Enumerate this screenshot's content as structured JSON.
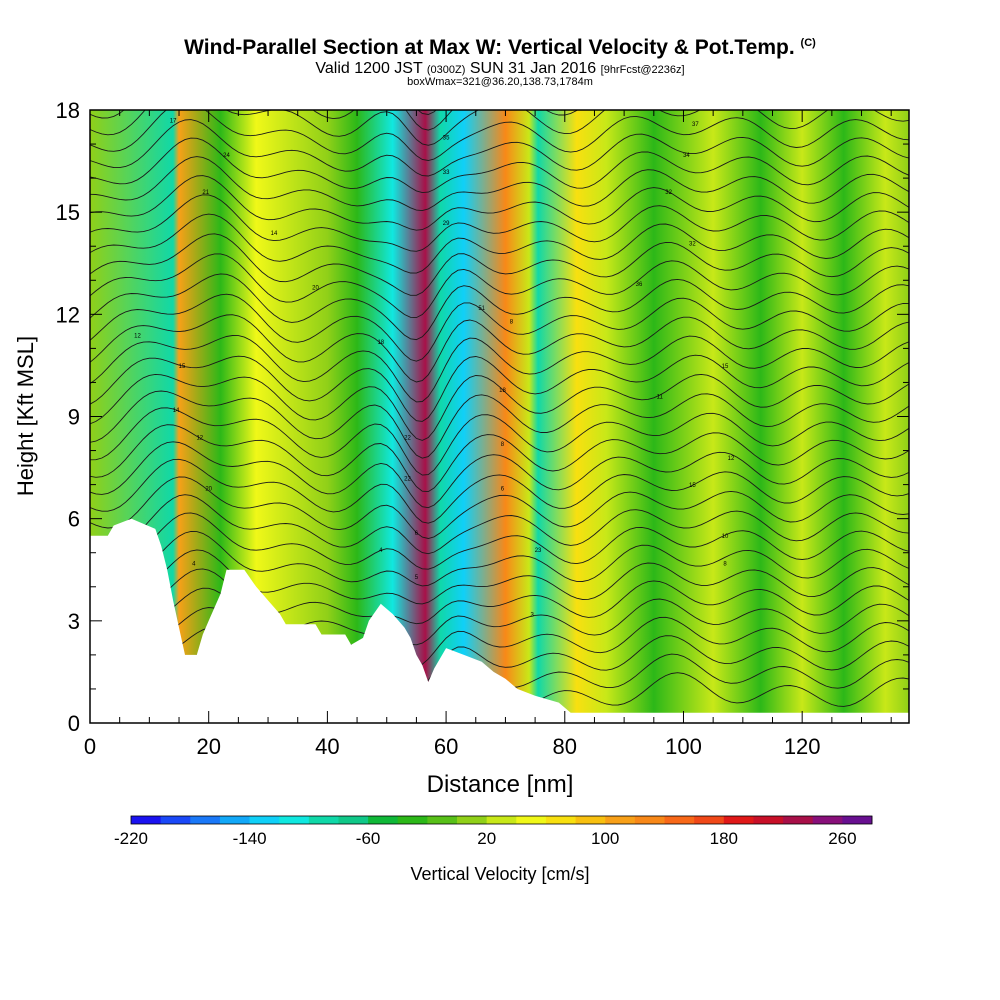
{
  "header": {
    "title": "Wind-Parallel Section at Max W: Vertical Velocity & Pot.Temp.",
    "copyright": "(C)",
    "valid_prefix": "Valid 1200 JST",
    "valid_utc": "(0300Z)",
    "valid_date": "SUN 31 Jan 2016",
    "forecast": "[9hrFcst@2236z]",
    "boxwmax": "boxWmax=321@36.20,138.73,1784m"
  },
  "chart_data": {
    "type": "heatmap",
    "xlabel": "Distance [nm]",
    "ylabel": "Height [Kft MSL]",
    "xlim": [
      0,
      138
    ],
    "ylim": [
      0,
      18
    ],
    "xticks": [
      0,
      20,
      40,
      60,
      80,
      100,
      120
    ],
    "yticks": [
      0,
      3,
      6,
      9,
      12,
      15,
      18
    ],
    "colorbar": {
      "label": "Vertical Velocity [cm/s]",
      "tick_labels": [
        -220,
        -140,
        -60,
        20,
        100,
        180,
        260
      ],
      "colors": [
        "#1a12f0",
        "#1a48f8",
        "#1a78f8",
        "#12a8f8",
        "#10d0f8",
        "#10e8e0",
        "#10d8a8",
        "#10c888",
        "#10b838",
        "#2cb818",
        "#58c018",
        "#90d018",
        "#c8e818",
        "#f0f818",
        "#f8e010",
        "#f8c010",
        "#f8a018",
        "#f88818",
        "#f86818",
        "#f04818",
        "#e01818",
        "#c81028",
        "#a81048",
        "#88107a",
        "#681090"
      ]
    },
    "vertical_velocity_bands": [
      {
        "x": 15,
        "w_cm_s": 150
      },
      {
        "x": 14,
        "w_cm_s": -110
      },
      {
        "x": 22,
        "w_cm_s": -40
      },
      {
        "x": 28,
        "w_cm_s": 60
      },
      {
        "x": 40,
        "w_cm_s": 20
      },
      {
        "x": 45,
        "w_cm_s": -40
      },
      {
        "x": 51,
        "w_cm_s": -130
      },
      {
        "x": 56.5,
        "w_cm_s": 300
      },
      {
        "x": 59,
        "w_cm_s": -100
      },
      {
        "x": 63,
        "w_cm_s": -170
      },
      {
        "x": 70,
        "w_cm_s": 160
      },
      {
        "x": 74,
        "w_cm_s": 40
      },
      {
        "x": 75.5,
        "w_cm_s": -120
      },
      {
        "x": 82,
        "w_cm_s": 90
      },
      {
        "x": 87,
        "w_cm_s": 40
      },
      {
        "x": 95,
        "w_cm_s": -40
      },
      {
        "x": 105,
        "w_cm_s": 40
      },
      {
        "x": 113,
        "w_cm_s": -40
      },
      {
        "x": 120,
        "w_cm_s": 30
      },
      {
        "x": 127,
        "w_cm_s": -40
      },
      {
        "x": 134,
        "w_cm_s": 30
      }
    ],
    "terrain_kft": [
      {
        "x": 0,
        "h": 5.5
      },
      {
        "x": 3,
        "h": 5.5
      },
      {
        "x": 4,
        "h": 5.8
      },
      {
        "x": 7,
        "h": 6.0
      },
      {
        "x": 11,
        "h": 5.7
      },
      {
        "x": 12,
        "h": 5.2
      },
      {
        "x": 13,
        "h": 4.5
      },
      {
        "x": 14,
        "h": 3.6
      },
      {
        "x": 15,
        "h": 2.8
      },
      {
        "x": 16,
        "h": 2.0
      },
      {
        "x": 18,
        "h": 2.0
      },
      {
        "x": 19,
        "h": 2.6
      },
      {
        "x": 20,
        "h": 3.0
      },
      {
        "x": 22,
        "h": 3.8
      },
      {
        "x": 23,
        "h": 4.5
      },
      {
        "x": 26,
        "h": 4.5
      },
      {
        "x": 28,
        "h": 4.0
      },
      {
        "x": 30,
        "h": 3.6
      },
      {
        "x": 32,
        "h": 3.2
      },
      {
        "x": 33,
        "h": 2.9
      },
      {
        "x": 38,
        "h": 2.9
      },
      {
        "x": 39,
        "h": 2.6
      },
      {
        "x": 43,
        "h": 2.6
      },
      {
        "x": 44,
        "h": 2.3
      },
      {
        "x": 46,
        "h": 2.5
      },
      {
        "x": 47,
        "h": 3.0
      },
      {
        "x": 49,
        "h": 3.5
      },
      {
        "x": 51,
        "h": 3.2
      },
      {
        "x": 53,
        "h": 2.8
      },
      {
        "x": 54,
        "h": 2.5
      },
      {
        "x": 55,
        "h": 2.0
      },
      {
        "x": 56,
        "h": 1.7
      },
      {
        "x": 57,
        "h": 1.2
      },
      {
        "x": 58,
        "h": 1.6
      },
      {
        "x": 60,
        "h": 2.2
      },
      {
        "x": 63,
        "h": 2.0
      },
      {
        "x": 66,
        "h": 1.8
      },
      {
        "x": 68,
        "h": 1.5
      },
      {
        "x": 70,
        "h": 1.3
      },
      {
        "x": 72,
        "h": 1.0
      },
      {
        "x": 75,
        "h": 0.8
      },
      {
        "x": 79,
        "h": 0.6
      },
      {
        "x": 81,
        "h": 0.3
      },
      {
        "x": 138,
        "h": 0.3
      }
    ],
    "contour_labels": [
      {
        "text": "17",
        "x": 14,
        "y": 17.7
      },
      {
        "text": "24",
        "x": 23,
        "y": 16.7
      },
      {
        "text": "21",
        "x": 19.5,
        "y": 15.6
      },
      {
        "text": "14",
        "x": 31,
        "y": 14.4
      },
      {
        "text": "20",
        "x": 38,
        "y": 12.8
      },
      {
        "text": "12",
        "x": 8,
        "y": 11.4
      },
      {
        "text": "15",
        "x": 15.5,
        "y": 10.5
      },
      {
        "text": "14",
        "x": 14.5,
        "y": 9.2
      },
      {
        "text": "12",
        "x": 18.5,
        "y": 8.4
      },
      {
        "text": "20",
        "x": 20,
        "y": 6.9
      },
      {
        "text": "4",
        "x": 17.5,
        "y": 4.7
      },
      {
        "text": "18",
        "x": 49,
        "y": 11.2
      },
      {
        "text": "22",
        "x": 53.5,
        "y": 8.4
      },
      {
        "text": "22",
        "x": 53.5,
        "y": 7.2
      },
      {
        "text": "4",
        "x": 49,
        "y": 5.1
      },
      {
        "text": "6",
        "x": 55,
        "y": 5.6
      },
      {
        "text": "5",
        "x": 55,
        "y": 4.3
      },
      {
        "text": "35",
        "x": 60,
        "y": 17.2
      },
      {
        "text": "33",
        "x": 60,
        "y": 16.2
      },
      {
        "text": "29",
        "x": 60,
        "y": 14.7
      },
      {
        "text": "51",
        "x": 66,
        "y": 12.2
      },
      {
        "text": "8",
        "x": 71,
        "y": 11.8
      },
      {
        "text": "18",
        "x": 69.5,
        "y": 9.8
      },
      {
        "text": "8",
        "x": 69.5,
        "y": 8.2
      },
      {
        "text": "6",
        "x": 69.5,
        "y": 6.9
      },
      {
        "text": "23",
        "x": 75.5,
        "y": 5.1
      },
      {
        "text": "3",
        "x": 74.5,
        "y": 3.2
      },
      {
        "text": "37",
        "x": 102,
        "y": 17.6
      },
      {
        "text": "34",
        "x": 100.5,
        "y": 16.7
      },
      {
        "text": "32",
        "x": 97.5,
        "y": 15.6
      },
      {
        "text": "32",
        "x": 101.5,
        "y": 14.1
      },
      {
        "text": "36",
        "x": 92.5,
        "y": 12.9
      },
      {
        "text": "15",
        "x": 107,
        "y": 10.5
      },
      {
        "text": "11",
        "x": 96,
        "y": 9.6
      },
      {
        "text": "12",
        "x": 108,
        "y": 7.8
      },
      {
        "text": "15",
        "x": 101.5,
        "y": 7.0
      },
      {
        "text": "10",
        "x": 107,
        "y": 5.5
      },
      {
        "text": "8",
        "x": 107,
        "y": 4.7
      }
    ]
  }
}
